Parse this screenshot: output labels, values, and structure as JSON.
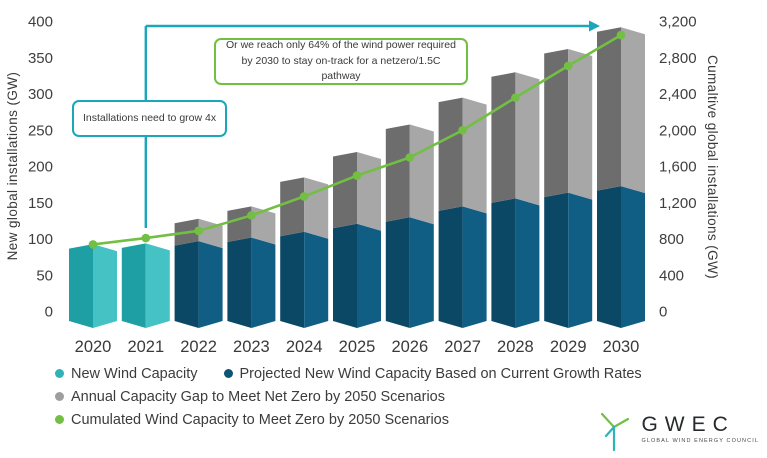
{
  "colors": {
    "teal_face_dark": "#1d9fa3",
    "teal_face_light": "#45c2c3",
    "blue_face_dark": "#0a4866",
    "blue_face_light": "#115e85",
    "gray_face_dark": "#6d6d6d",
    "gray_face_light": "#a7a7a7",
    "line_green": "#72bf44",
    "bracket_teal": "#1aa6bb",
    "text": "#3f3f3f"
  },
  "chart_data": {
    "type": "bar",
    "subtype": "stacked-3d-fold-bars-with-line",
    "categories": [
      "2020",
      "2021",
      "2022",
      "2023",
      "2024",
      "2025",
      "2026",
      "2027",
      "2028",
      "2029",
      "2030"
    ],
    "series": [
      {
        "name": "New Wind Capacity",
        "type": "bar",
        "axis": "left",
        "color": "#2fb3b6",
        "face_dark": "#1d9fa3",
        "face_light": "#45c2c3",
        "values": [
          93,
          94,
          null,
          null,
          null,
          null,
          null,
          null,
          null,
          null,
          null
        ]
      },
      {
        "name": "Projected New Wind Capacity Based on Current Growth Rates",
        "type": "bar",
        "axis": "left",
        "color": "#0d5575",
        "face_dark": "#0a4866",
        "face_light": "#115e85",
        "values": [
          null,
          null,
          97,
          102,
          110,
          121,
          130,
          145,
          156,
          164,
          173
        ]
      },
      {
        "name": "Annual Capacity Gap to Meet Net Zero by 2050 Scenarios",
        "type": "bar",
        "axis": "left",
        "color": "#9e9e9e",
        "face_dark": "#6d6d6d",
        "face_light": "#a7a7a7",
        "values": [
          null,
          null,
          31,
          43,
          75,
          99,
          128,
          150,
          174,
          198,
          219
        ]
      },
      {
        "name": "Cumulated Wind Capacity to Meet Zero by 2050 Scenarios",
        "type": "line",
        "axis": "right",
        "color": "#72bf44",
        "values": [
          740,
          810,
          890,
          1060,
          1270,
          1500,
          1700,
          2000,
          2360,
          2710,
          3050
        ]
      }
    ],
    "left_axis": {
      "label": "New global installations (GW)",
      "ticks": [
        "400",
        "350",
        "300",
        "250",
        "200",
        "150",
        "100",
        "50",
        "0"
      ],
      "min": 0,
      "max": 400
    },
    "right_axis": {
      "label": "Cumaltive global installations (GW)",
      "ticks": [
        "3,200",
        "2,800",
        "2,400",
        "2,000",
        "1,600",
        "1,200",
        "800",
        "400",
        "0"
      ],
      "min": 0,
      "max": 3200
    },
    "grid": false,
    "legend_position": "bottom",
    "annotations": [
      {
        "id": "grow4x",
        "text": "Installations need to grow 4x",
        "border_color": "#1aa6bb"
      },
      {
        "id": "reach64",
        "text": "Or we reach only 64% of the wind power required by 2030 to stay on-track for a netzero/1.5C pathway",
        "border_color": "#72bf44"
      }
    ],
    "arrow": {
      "color": "#1aa6bb",
      "from_year": "2021",
      "to_year": "2030"
    }
  },
  "logo": {
    "name": "GWEC",
    "tagline": "GLOBAL WIND ENERGY COUNCIL"
  }
}
